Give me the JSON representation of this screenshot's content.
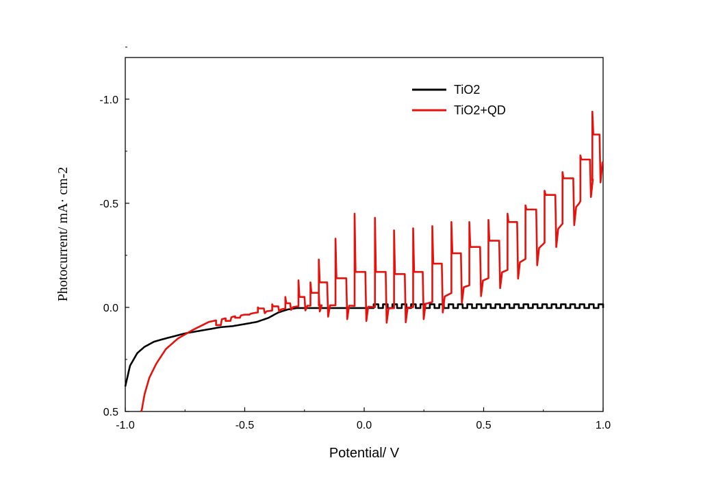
{
  "chart_data": {
    "type": "line",
    "title": "",
    "xlabel": "Potential/ V",
    "ylabel": "Photocurrent/ mA· cm-2",
    "xlim": [
      -1.0,
      1.0
    ],
    "ylim": [
      0.5,
      -1.2
    ],
    "y_axis_inverted": true,
    "grid": false,
    "legend_position": "top-right",
    "x_ticks": [
      -1.0,
      -0.5,
      0.0,
      0.5,
      1.0
    ],
    "x_tick_labels": [
      "-1.0",
      "-0.5",
      "0.0",
      "0.5",
      "1.0"
    ],
    "y_ticks": [
      -1.0,
      -0.5,
      0.0,
      0.5
    ],
    "y_tick_labels": [
      "-1.0",
      "-0.5",
      "0.0",
      "0.5"
    ],
    "series": [
      {
        "name": "TiO2",
        "color": "#000000",
        "baseline_points": [
          {
            "x": -1.0,
            "y": 0.38
          },
          {
            "x": -0.98,
            "y": 0.28
          },
          {
            "x": -0.95,
            "y": 0.22
          },
          {
            "x": -0.92,
            "y": 0.19
          },
          {
            "x": -0.88,
            "y": 0.165
          },
          {
            "x": -0.85,
            "y": 0.155
          },
          {
            "x": -0.8,
            "y": 0.14
          },
          {
            "x": -0.75,
            "y": 0.125
          },
          {
            "x": -0.7,
            "y": 0.115
          },
          {
            "x": -0.65,
            "y": 0.105
          },
          {
            "x": -0.6,
            "y": 0.095
          },
          {
            "x": -0.55,
            "y": 0.09
          },
          {
            "x": -0.5,
            "y": 0.08
          },
          {
            "x": -0.45,
            "y": 0.07
          },
          {
            "x": -0.4,
            "y": 0.05
          },
          {
            "x": -0.36,
            "y": 0.025
          },
          {
            "x": -0.32,
            "y": 0.01
          },
          {
            "x": -0.28,
            "y": 0.003
          },
          {
            "x": -0.2,
            "y": 0.003
          },
          {
            "x": 0.0,
            "y": 0.003
          },
          {
            "x": 1.0,
            "y": 0.003
          }
        ],
        "chopping_start": 0.02,
        "chopping_period": 0.0392,
        "light_on_value": -0.015
      },
      {
        "name": "TiO2+QD",
        "color": "#e8100a",
        "baseline_points": [
          {
            "x": -0.935,
            "y": 0.52
          },
          {
            "x": -0.92,
            "y": 0.42
          },
          {
            "x": -0.9,
            "y": 0.34
          },
          {
            "x": -0.87,
            "y": 0.27
          },
          {
            "x": -0.83,
            "y": 0.2
          },
          {
            "x": -0.78,
            "y": 0.15
          },
          {
            "x": -0.72,
            "y": 0.11
          },
          {
            "x": -0.65,
            "y": 0.07
          },
          {
            "x": -0.55,
            "y": 0.045
          },
          {
            "x": -0.45,
            "y": 0.025
          },
          {
            "x": -0.35,
            "y": 0.01
          },
          {
            "x": -0.28,
            "y": -0.005
          },
          {
            "x": -0.2,
            "y": -0.01
          },
          {
            "x": -0.1,
            "y": -0.01
          },
          {
            "x": 0.0,
            "y": -0.005
          },
          {
            "x": 0.1,
            "y": 0.005
          },
          {
            "x": 0.2,
            "y": 0.0
          },
          {
            "x": 0.3,
            "y": -0.03
          },
          {
            "x": 0.4,
            "y": -0.09
          },
          {
            "x": 0.5,
            "y": -0.13
          },
          {
            "x": 0.6,
            "y": -0.18
          },
          {
            "x": 0.7,
            "y": -0.25
          },
          {
            "x": 0.8,
            "y": -0.36
          },
          {
            "x": 0.9,
            "y": -0.5
          },
          {
            "x": 1.0,
            "y": -0.7
          }
        ],
        "light_pulses": [
          {
            "on": -0.62,
            "off": -0.6,
            "plateau": 0.085,
            "spike": 0.085
          },
          {
            "on": -0.58,
            "off": -0.56,
            "plateau": 0.065,
            "spike": 0.065
          },
          {
            "on": -0.54,
            "off": -0.52,
            "plateau": 0.05,
            "spike": 0.05
          },
          {
            "on": -0.5,
            "off": -0.48,
            "plateau": 0.035,
            "spike": 0.035
          },
          {
            "on": -0.445,
            "off": -0.42,
            "plateau": 0.005,
            "spike": 0.0
          },
          {
            "on": -0.385,
            "off": -0.36,
            "plateau": -0.005,
            "spike": -0.015
          },
          {
            "on": -0.33,
            "off": -0.31,
            "plateau": -0.02,
            "spike": -0.05
          },
          {
            "on": -0.275,
            "off": -0.25,
            "plateau": -0.05,
            "spike": -0.13
          },
          {
            "on": -0.225,
            "off": -0.19,
            "plateau": -0.07,
            "spike": -0.12
          },
          {
            "on": -0.19,
            "off": -0.155,
            "plateau": -0.12,
            "spike": -0.23
          },
          {
            "on": -0.12,
            "off": -0.075,
            "plateau": -0.14,
            "spike": -0.33
          },
          {
            "on": -0.04,
            "off": 0.005,
            "plateau": -0.17,
            "spike": -0.45
          },
          {
            "on": 0.045,
            "off": 0.09,
            "plateau": -0.17,
            "spike": -0.43
          },
          {
            "on": 0.125,
            "off": 0.17,
            "plateau": -0.16,
            "spike": -0.37
          },
          {
            "on": 0.205,
            "off": 0.245,
            "plateau": -0.17,
            "spike": -0.38
          },
          {
            "on": 0.285,
            "off": 0.325,
            "plateau": -0.21,
            "spike": -0.39
          },
          {
            "on": 0.365,
            "off": 0.405,
            "plateau": -0.26,
            "spike": -0.41
          },
          {
            "on": 0.44,
            "off": 0.485,
            "plateau": -0.29,
            "spike": -0.41
          },
          {
            "on": 0.52,
            "off": 0.565,
            "plateau": -0.32,
            "spike": -0.42
          },
          {
            "on": 0.6,
            "off": 0.64,
            "plateau": -0.41,
            "spike": -0.45
          },
          {
            "on": 0.675,
            "off": 0.72,
            "plateau": -0.47,
            "spike": -0.49
          },
          {
            "on": 0.755,
            "off": 0.8,
            "plateau": -0.54,
            "spike": -0.56
          },
          {
            "on": 0.83,
            "off": 0.875,
            "plateau": -0.62,
            "spike": -0.65
          },
          {
            "on": 0.905,
            "off": 0.945,
            "plateau": -0.71,
            "spike": -0.73
          },
          {
            "on": 0.955,
            "off": 0.985,
            "plateau": -0.83,
            "spike": -0.94
          }
        ]
      }
    ]
  }
}
